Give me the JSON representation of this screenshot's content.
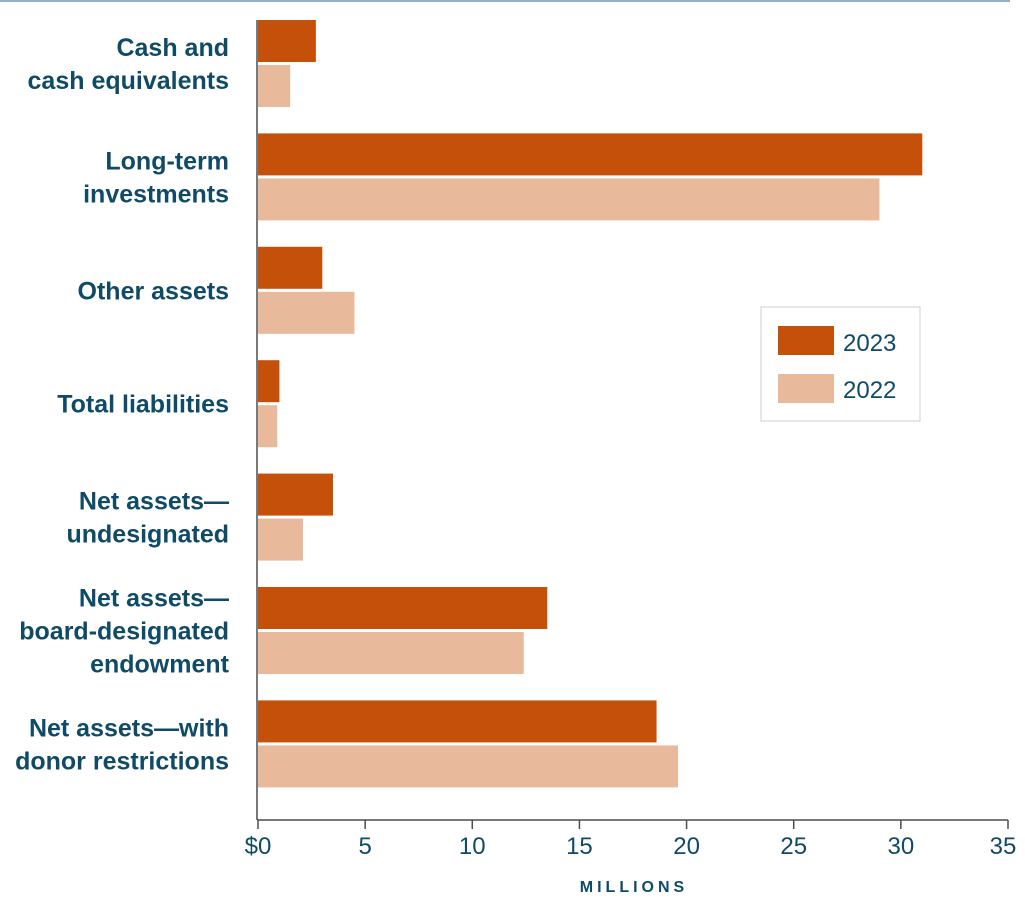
{
  "chart_data": {
    "type": "bar",
    "orientation": "horizontal",
    "categories": [
      [
        "Cash and",
        "cash equivalents"
      ],
      [
        "Long-term",
        "investments"
      ],
      [
        "Other assets"
      ],
      [
        "Total liabilities"
      ],
      [
        "Net assets—",
        "undesignated"
      ],
      [
        "Net assets—",
        "board-designated",
        "endowment"
      ],
      [
        "Net assets—with",
        "donor restrictions"
      ]
    ],
    "series": [
      {
        "name": "2023",
        "color": "#c4500a",
        "values": [
          2.7,
          31.0,
          3.0,
          1.0,
          3.5,
          13.5,
          18.6
        ]
      },
      {
        "name": "2022",
        "color": "#e8b99a",
        "values": [
          1.5,
          29.0,
          4.5,
          0.9,
          2.1,
          12.4,
          19.6
        ]
      }
    ],
    "xticks": [
      "$0",
      "5",
      "10",
      "15",
      "20",
      "25",
      "30",
      "35"
    ],
    "xlim": [
      0,
      35
    ],
    "xlabel": "MILLIONS",
    "legend_position": "right",
    "grid": false
  }
}
